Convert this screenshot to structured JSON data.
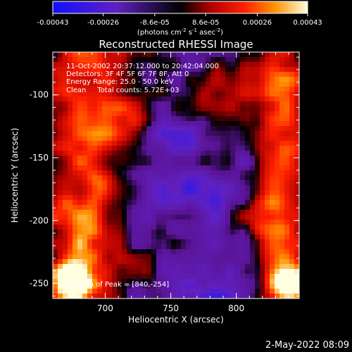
{
  "chart_data": {
    "type": "heatmap",
    "title": "Reconstructed RHESSI Image",
    "xlabel": "Heliocentric X (arcsec)",
    "ylabel": "Heliocentric Y (arcsec)",
    "xlim": [
      660,
      848
    ],
    "ylim": [
      -262,
      -66
    ],
    "xticks": [
      700,
      750,
      800
    ],
    "yticks": [
      -100,
      -150,
      -200,
      -250
    ],
    "colorbar": {
      "ticks": [
        "-0.00043",
        "-0.00026",
        "-8.6e-05",
        "8.6e-05",
        "0.00026",
        "0.00043"
      ],
      "units_prefix": "(photons cm",
      "units_exp1": "-2",
      "units_mid": " s",
      "units_exp2": "-1",
      "units_mid2": " asec",
      "units_exp3": "-2",
      "units_suffix": ")",
      "range": [
        -0.00043,
        0.00043
      ]
    },
    "annotations": [
      "11-Oct-2002 20:37:12.000 to 20:42:04.000",
      "Detectors: 3F 4F 5F 6F 7F 8F, Att 0",
      "Energy Range: 25.0 - 50.0 keV",
      "Clean     Total counts: 5.72E+03"
    ],
    "peak_label": "Position of Peak = [840,-254]",
    "peak": [
      840,
      -254
    ],
    "timestamp": "2-May-2022 08:09",
    "grid": false
  }
}
